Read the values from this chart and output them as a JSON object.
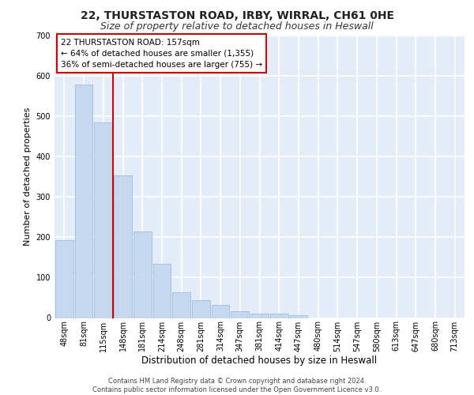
{
  "title1": "22, THURSTASTON ROAD, IRBY, WIRRAL, CH61 0HE",
  "title2": "Size of property relative to detached houses in Heswall",
  "xlabel": "Distribution of detached houses by size in Heswall",
  "ylabel": "Number of detached properties",
  "bar_labels": [
    "48sqm",
    "81sqm",
    "115sqm",
    "148sqm",
    "181sqm",
    "214sqm",
    "248sqm",
    "281sqm",
    "314sqm",
    "347sqm",
    "381sqm",
    "414sqm",
    "447sqm",
    "480sqm",
    "514sqm",
    "547sqm",
    "580sqm",
    "613sqm",
    "647sqm",
    "680sqm",
    "713sqm"
  ],
  "bar_values": [
    192,
    578,
    484,
    354,
    215,
    135,
    63,
    45,
    33,
    17,
    11,
    11,
    7,
    0,
    0,
    0,
    0,
    0,
    0,
    0,
    0
  ],
  "bar_color": "#c5d8f0",
  "bar_edge_color": "#9bbde0",
  "bg_color": "#e4ecf7",
  "grid_color": "#ffffff",
  "vline_x": 2.5,
  "vline_color": "#cc0000",
  "annotation_text": "22 THURSTASTON ROAD: 157sqm\n← 64% of detached houses are smaller (1,355)\n36% of semi-detached houses are larger (755) →",
  "annotation_box_color": "#ffffff",
  "annotation_box_edge": "#cc0000",
  "footer": "Contains HM Land Registry data © Crown copyright and database right 2024.\nContains public sector information licensed under the Open Government Licence v3.0.",
  "ylim": [
    0,
    700
  ],
  "yticks": [
    0,
    100,
    200,
    300,
    400,
    500,
    600,
    700
  ],
  "title1_fontsize": 10,
  "title2_fontsize": 9,
  "xlabel_fontsize": 8.5,
  "ylabel_fontsize": 8,
  "tick_fontsize": 7,
  "footer_fontsize": 6,
  "annotation_fontsize": 7.5
}
